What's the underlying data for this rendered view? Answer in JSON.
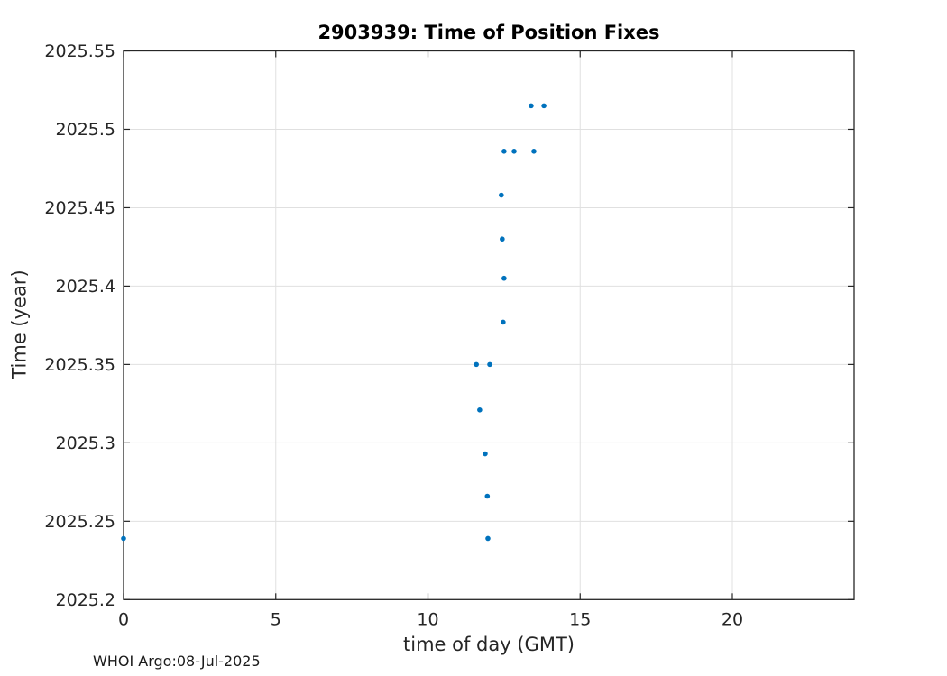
{
  "chart_data": {
    "type": "scatter",
    "title": "2903939: Time of Position Fixes",
    "xlabel": "time of day (GMT)",
    "ylabel": "Time (year)",
    "footer": "WHOI Argo:08-Jul-2025",
    "xlim": [
      0,
      24
    ],
    "ylim": [
      2025.2,
      2025.55
    ],
    "xticks": [
      0,
      5,
      10,
      15,
      20
    ],
    "xtick_labels": [
      "0",
      "5",
      "10",
      "15",
      "20"
    ],
    "yticks": [
      2025.2,
      2025.25,
      2025.3,
      2025.35,
      2025.4,
      2025.45,
      2025.5,
      2025.55
    ],
    "ytick_labels": [
      "2025.2",
      "2025.25",
      "2025.3",
      "2025.35",
      "2025.4",
      "2025.45",
      "2025.5",
      "2025.55"
    ],
    "grid": true,
    "legend": null,
    "marker": "dot",
    "marker_color": "#0072bd",
    "axis_color": "#262626",
    "grid_color": "#e0e0e0",
    "points": [
      [
        0.0,
        2025.239
      ],
      [
        11.97,
        2025.239
      ],
      [
        11.95,
        2025.266
      ],
      [
        11.88,
        2025.293
      ],
      [
        11.7,
        2025.321
      ],
      [
        11.59,
        2025.35
      ],
      [
        12.03,
        2025.35
      ],
      [
        12.47,
        2025.377
      ],
      [
        12.5,
        2025.405
      ],
      [
        12.44,
        2025.43
      ],
      [
        12.41,
        2025.458
      ],
      [
        12.5,
        2025.486
      ],
      [
        12.83,
        2025.486
      ],
      [
        13.48,
        2025.486
      ],
      [
        13.39,
        2025.515
      ],
      [
        13.81,
        2025.515
      ]
    ]
  }
}
